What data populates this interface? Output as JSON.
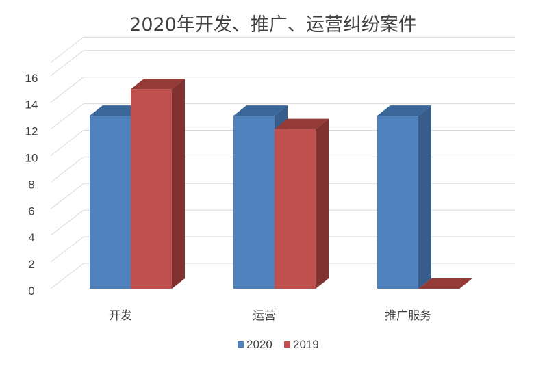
{
  "chart_data": {
    "type": "bar",
    "title": "2020年开发、推广、运营纠纷案件",
    "categories": [
      "开发",
      "运营",
      "推广服务"
    ],
    "series": [
      {
        "name": "2020",
        "values": [
          13,
          13,
          13
        ],
        "color": "#4F81BD",
        "side_color": "#385D8A",
        "top_color": "#3A6799"
      },
      {
        "name": "2019",
        "values": [
          15,
          12,
          0
        ],
        "color": "#C0504D",
        "side_color": "#7F3230",
        "top_color": "#943A37"
      }
    ],
    "yticks": [
      "0",
      "2",
      "4",
      "6",
      "8",
      "10",
      "12",
      "14",
      "16"
    ],
    "ylim": [
      0,
      16
    ],
    "grid": true,
    "legend_position": "bottom",
    "style": "3d-clustered-column"
  }
}
